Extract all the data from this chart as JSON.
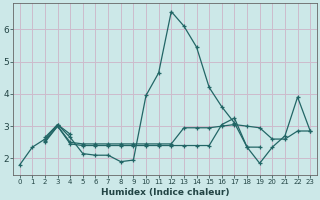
{
  "title": "",
  "xlabel": "Humidex (Indice chaleur)",
  "bg_color": "#cce8e8",
  "grid_color": "#ccbbcc",
  "line_color": "#226666",
  "xlim": [
    -0.5,
    23.5
  ],
  "ylim": [
    1.5,
    6.8
  ],
  "yticks": [
    2,
    3,
    4,
    5,
    6
  ],
  "xticks": [
    0,
    1,
    2,
    3,
    4,
    5,
    6,
    7,
    8,
    9,
    10,
    11,
    12,
    13,
    14,
    15,
    16,
    17,
    18,
    19,
    20,
    21,
    22,
    23
  ],
  "lines": [
    {
      "x": [
        0,
        1,
        2,
        3,
        4,
        5,
        6,
        7,
        8,
        9,
        10,
        11,
        12,
        13,
        14,
        15,
        16,
        17,
        18,
        19,
        20,
        21,
        22,
        23
      ],
      "y": [
        1.8,
        2.35,
        2.6,
        3.05,
        2.65,
        2.15,
        2.1,
        2.1,
        1.9,
        1.95,
        3.95,
        4.65,
        6.55,
        6.1,
        5.45,
        4.2,
        3.6,
        3.1,
        2.35,
        1.85,
        2.35,
        2.7,
        3.9,
        2.85
      ]
    },
    {
      "x": [
        2,
        3,
        4
      ],
      "y": [
        2.65,
        3.05,
        2.75
      ]
    },
    {
      "x": [
        2,
        3,
        4,
        5,
        6,
        7,
        8,
        9,
        10,
        11,
        12,
        13,
        14,
        15,
        16,
        17,
        18,
        19
      ],
      "y": [
        2.55,
        3.0,
        2.45,
        2.4,
        2.4,
        2.4,
        2.4,
        2.4,
        2.4,
        2.4,
        2.4,
        2.4,
        2.4,
        2.4,
        3.05,
        3.25,
        2.35,
        2.35
      ]
    },
    {
      "x": [
        2,
        3,
        4,
        5,
        6,
        7,
        8,
        9,
        10,
        11,
        12,
        13,
        14,
        15,
        16,
        17,
        18,
        19,
        20,
        21,
        22,
        23
      ],
      "y": [
        2.5,
        3.0,
        2.5,
        2.45,
        2.45,
        2.45,
        2.45,
        2.45,
        2.45,
        2.45,
        2.45,
        2.95,
        2.95,
        2.95,
        3.0,
        3.05,
        3.0,
        2.95,
        2.6,
        2.6,
        2.85,
        2.85
      ]
    }
  ]
}
